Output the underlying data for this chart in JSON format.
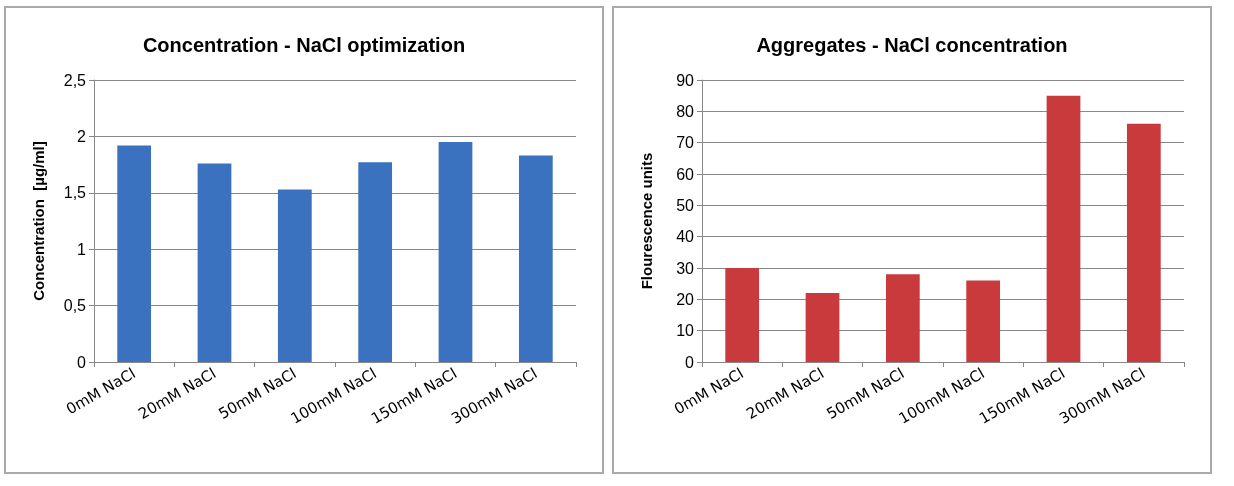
{
  "chart_data": [
    {
      "type": "bar",
      "title": "Concentration - NaCl optimization",
      "ylabel": "Concentration  [µg/ml]",
      "categories": [
        "0mM NaCl",
        "20mM NaCl",
        "50mM NaCl",
        "100mM NaCl",
        "150mM NaCl",
        "300mM NaCl"
      ],
      "values": [
        1.92,
        1.76,
        1.53,
        1.77,
        1.95,
        1.83
      ],
      "color": "#3a72c0",
      "ylim": [
        0,
        2.5
      ],
      "yticks": [
        0,
        {
          "value": 0.5,
          "label": "0,5"
        },
        1,
        {
          "value": 1.5,
          "label": "1,5"
        },
        2,
        {
          "value": 2.5,
          "label": "2,5"
        }
      ],
      "grid": "y"
    },
    {
      "type": "bar",
      "title": "Aggregates - NaCl concentration",
      "ylabel": "Flourescence units",
      "categories": [
        "0mM NaCl",
        "20mM NaCl",
        "50mM NaCl",
        "100mM NaCl",
        "150mM NaCl",
        "300mM NaCl"
      ],
      "values": [
        30,
        22,
        28,
        26,
        85,
        76
      ],
      "color": "#c93a3c",
      "ylim": [
        0,
        90
      ],
      "yticks": [
        0,
        10,
        20,
        30,
        40,
        50,
        60,
        70,
        80,
        90
      ],
      "grid": "y"
    }
  ]
}
